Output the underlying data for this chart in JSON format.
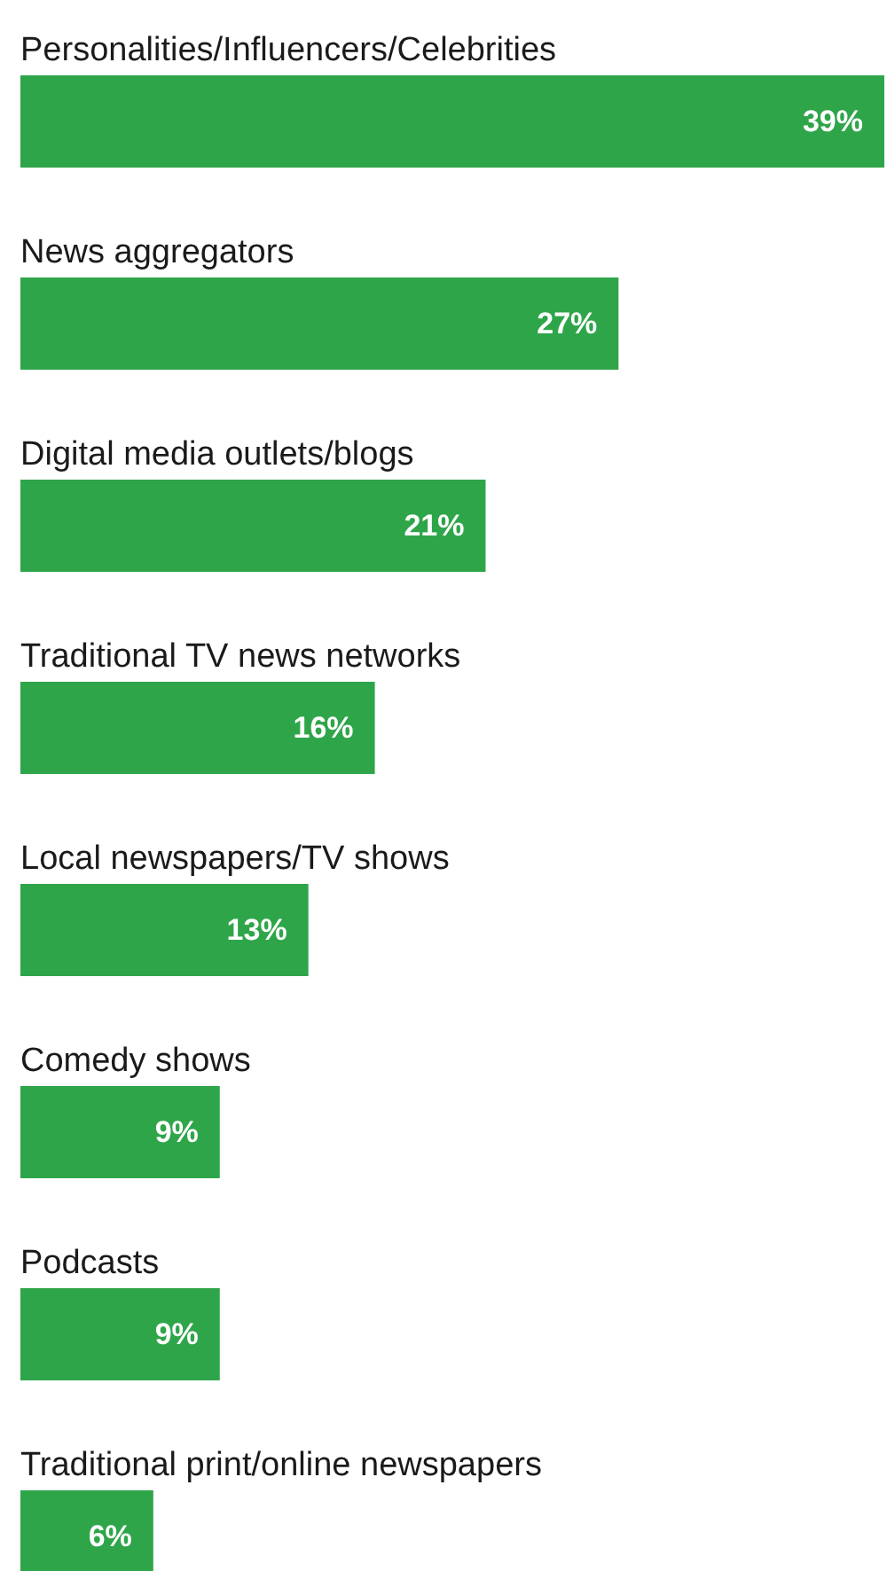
{
  "chart_data": {
    "type": "bar",
    "orientation": "horizontal",
    "categories": [
      "Personalities/Influencers/Celebrities",
      "News aggregators",
      "Digital media outlets/blogs",
      "Traditional TV news networks",
      "Local newspapers/TV shows",
      "Comedy shows",
      "Podcasts",
      "Traditional print/online newspapers"
    ],
    "values": [
      39,
      27,
      21,
      16,
      13,
      9,
      9,
      6
    ],
    "value_labels": [
      "39%",
      "27%",
      "21%",
      "16%",
      "13%",
      "9%",
      "9%",
      "6%"
    ],
    "color": "#2fa54a",
    "grid": false
  }
}
